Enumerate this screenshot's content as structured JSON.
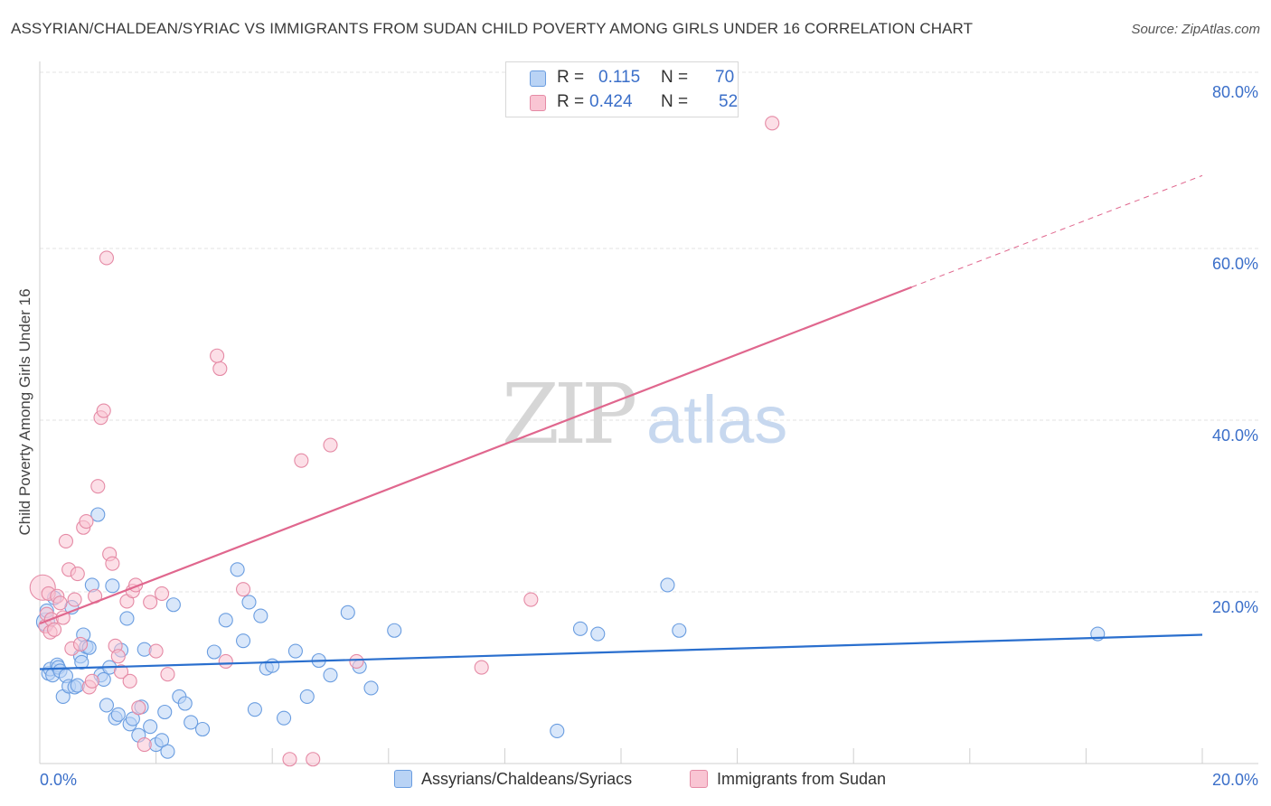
{
  "title": "ASSYRIAN/CHALDEAN/SYRIAC VS IMMIGRANTS FROM SUDAN CHILD POVERTY AMONG GIRLS UNDER 16 CORRELATION CHART",
  "source": "Source: ZipAtlas.com",
  "watermark": {
    "zip": "ZIP",
    "atlas": "atlas"
  },
  "legend": {
    "r_label": "R =",
    "n_label": "N =",
    "rows": [
      {
        "r": "0.115",
        "n": "70",
        "fill": "#b9d3f5",
        "stroke": "#6a9de0"
      },
      {
        "r": "0.424",
        "n": "52",
        "fill": "#f9c5d3",
        "stroke": "#e58aa5"
      }
    ]
  },
  "chart_data": {
    "type": "scatter",
    "title": "ASSYRIAN/CHALDEAN/SYRIAC VS IMMIGRANTS FROM SUDAN CHILD POVERTY AMONG GIRLS UNDER 16 CORRELATION CHART",
    "xlabel": "",
    "ylabel": "Child Poverty Among Girls Under 16",
    "xlim": [
      0,
      20
    ],
    "ylim": [
      0,
      80
    ],
    "x_tick_labels": [
      "0.0%",
      "20.0%"
    ],
    "y_ticks": [
      20,
      40,
      60,
      80
    ],
    "y_tick_labels": [
      "20.0%",
      "40.0%",
      "60.0%",
      "80.0%"
    ],
    "grid": true,
    "series": [
      {
        "name": "Assyrians/Chaldeans/Syriacs",
        "color": "#6a9de0",
        "fill": "#b9d3f5",
        "r": 0.115,
        "n": 70,
        "trend": {
          "x0": 0,
          "y0": 11.0,
          "x1": 20,
          "y1": 15.0
        },
        "x": [
          0.1,
          0.12,
          0.15,
          0.18,
          0.22,
          0.25,
          0.3,
          0.32,
          0.35,
          0.4,
          0.45,
          0.5,
          0.55,
          0.6,
          0.65,
          0.7,
          0.72,
          0.75,
          0.8,
          0.85,
          0.9,
          1.0,
          1.05,
          1.1,
          1.15,
          1.2,
          1.25,
          1.3,
          1.35,
          1.4,
          1.5,
          1.55,
          1.6,
          1.7,
          1.75,
          1.8,
          1.9,
          2.0,
          2.1,
          2.15,
          2.2,
          2.3,
          2.4,
          2.5,
          2.6,
          2.8,
          3.0,
          3.2,
          3.4,
          3.5,
          3.6,
          3.7,
          3.8,
          3.9,
          4.0,
          4.2,
          4.4,
          4.6,
          4.8,
          5.0,
          5.3,
          5.5,
          5.7,
          6.1,
          8.9,
          9.3,
          9.6,
          10.8,
          11.0,
          18.2
        ],
        "y": [
          16.5,
          17.8,
          10.5,
          11.0,
          10.3,
          19.3,
          11.5,
          11.2,
          10.8,
          7.8,
          10.2,
          9.0,
          18.2,
          8.9,
          9.1,
          12.5,
          11.8,
          15.0,
          13.6,
          13.5,
          20.8,
          29.0,
          10.3,
          9.8,
          6.8,
          11.2,
          20.7,
          5.3,
          5.7,
          13.2,
          16.9,
          4.6,
          5.2,
          3.3,
          6.6,
          13.3,
          4.3,
          2.2,
          2.7,
          6.0,
          1.4,
          18.5,
          7.8,
          7.0,
          4.8,
          4.0,
          13.0,
          16.7,
          22.6,
          14.3,
          18.8,
          6.3,
          17.2,
          11.1,
          11.4,
          5.3,
          13.1,
          7.8,
          12.0,
          10.3,
          17.6,
          11.3,
          8.8,
          15.5,
          3.8,
          15.7,
          15.1,
          20.8,
          15.5,
          15.1
        ]
      },
      {
        "name": "Immigrants from Sudan",
        "color": "#e58aa5",
        "fill": "#f9c5d3",
        "r": 0.424,
        "n": 52,
        "trend": {
          "x0": 0,
          "y0": 16.3,
          "x1": 15.0,
          "y1": 55.5,
          "dashed_to": {
            "x": 20,
            "y": 68.5
          }
        },
        "x": [
          0.05,
          0.1,
          0.12,
          0.15,
          0.18,
          0.2,
          0.25,
          0.3,
          0.35,
          0.4,
          0.45,
          0.5,
          0.55,
          0.6,
          0.65,
          0.7,
          0.75,
          0.8,
          0.85,
          0.9,
          0.95,
          1.0,
          1.05,
          1.1,
          1.15,
          1.2,
          1.25,
          1.3,
          1.35,
          1.4,
          1.5,
          1.55,
          1.6,
          1.65,
          1.7,
          1.8,
          1.9,
          2.0,
          2.1,
          2.2,
          3.05,
          3.1,
          3.2,
          3.5,
          4.3,
          4.5,
          4.7,
          5.0,
          5.45,
          7.6,
          8.45,
          12.6
        ],
        "y": [
          20.5,
          16.0,
          17.4,
          19.8,
          15.3,
          16.8,
          15.6,
          19.5,
          18.7,
          17.0,
          25.9,
          22.6,
          13.4,
          19.1,
          22.1,
          13.9,
          27.5,
          28.2,
          8.9,
          9.6,
          19.5,
          32.3,
          40.3,
          41.1,
          58.9,
          24.4,
          23.3,
          13.7,
          12.5,
          10.7,
          18.9,
          9.6,
          20.1,
          20.8,
          6.5,
          2.2,
          18.8,
          13.1,
          19.8,
          10.4,
          47.5,
          46.0,
          11.9,
          20.3,
          0.5,
          35.3,
          0.5,
          37.1,
          11.9,
          11.2,
          19.1,
          74.6
        ]
      }
    ]
  },
  "labels": {
    "x_min": "0.0%",
    "x_max": "20.0%"
  },
  "colors": {
    "axis_label": "#3b6fc9",
    "grid": "#e3e3e3",
    "blue_line": "#2a6fce",
    "pink_line": "#e0678e"
  }
}
